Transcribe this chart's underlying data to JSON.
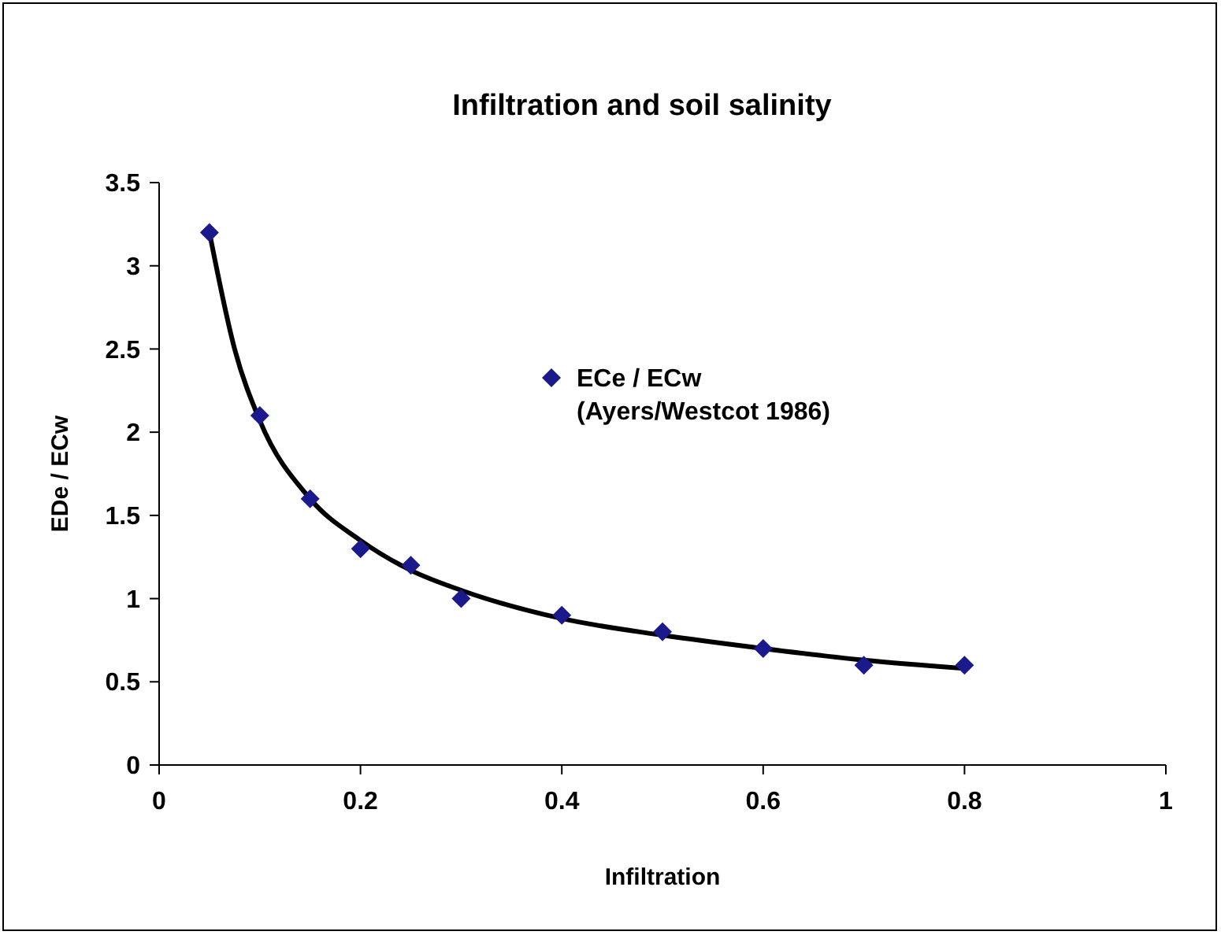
{
  "chart_data": {
    "type": "scatter",
    "title": "Infiltration and soil salinity",
    "xlabel": "Infiltration",
    "ylabel": "EDe / ECw",
    "xlim": [
      0,
      1
    ],
    "ylim": [
      0,
      3.5
    ],
    "xticks": [
      0,
      0.2,
      0.4,
      0.6,
      0.8,
      1
    ],
    "yticks": [
      0,
      0.5,
      1,
      1.5,
      2,
      2.5,
      3,
      3.5
    ],
    "grid": false,
    "legend": "top right",
    "series": [
      {
        "name": "ECe / ECw (Ayers/Westcot 1986)",
        "color": "#1a1a8c",
        "marker": "diamond",
        "x": [
          0.05,
          0.1,
          0.15,
          0.2,
          0.25,
          0.3,
          0.4,
          0.5,
          0.6,
          0.7,
          0.8
        ],
        "values": [
          3.2,
          2.1,
          1.6,
          1.3,
          1.2,
          1.0,
          0.9,
          0.8,
          0.7,
          0.6,
          0.6
        ]
      },
      {
        "type": "line",
        "color": "#000000",
        "line_style": "solid",
        "marker": "none",
        "x": [
          0.05,
          0.075,
          0.1,
          0.15,
          0.2,
          0.25,
          0.3,
          0.4,
          0.5,
          0.6,
          0.7,
          0.8
        ],
        "values": [
          3.2,
          2.5,
          2.07,
          1.6,
          1.35,
          1.17,
          1.05,
          0.88,
          0.78,
          0.7,
          0.63,
          0.58
        ]
      }
    ]
  }
}
